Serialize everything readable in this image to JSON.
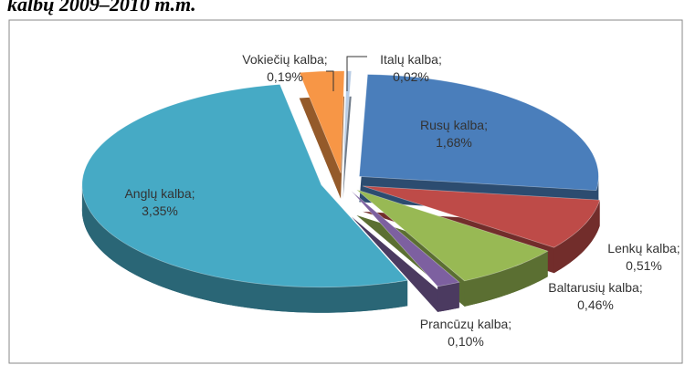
{
  "heading": "kalbų 2009–2010 m.m.",
  "chart_data": {
    "type": "pie",
    "categories": [
      "Rusų kalba;",
      "Lenkų kalba;",
      "Baltarusių kalba;",
      "Prancūzų kalba;",
      "Anglų kalba;",
      "Vokiečių kalba;",
      "Italų kalba;"
    ],
    "values": [
      1.68,
      0.51,
      0.46,
      0.1,
      3.35,
      0.19,
      0.02
    ],
    "value_labels": [
      "1,68%",
      "0,51%",
      "0,46%",
      "0,10%",
      "3,35%",
      "0,19%",
      "0,02%"
    ],
    "colors": [
      "#4a7ebb",
      "#be4b48",
      "#98b954",
      "#7d60a0",
      "#46aac5",
      "#f79646",
      "#b9cde5"
    ]
  }
}
